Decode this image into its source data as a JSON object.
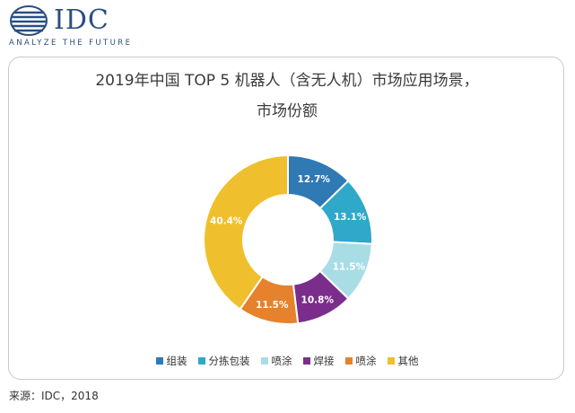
{
  "logo": {
    "wordmark": "IDC",
    "tagline": "ANALYZE THE FUTURE"
  },
  "colors": {
    "brand": "#2a4f82",
    "series": [
      "#2f79b4",
      "#2fa8c9",
      "#a8dde6",
      "#7b2d8c",
      "#e6812c",
      "#f0bf2d"
    ]
  },
  "chart_data": {
    "type": "pie",
    "subtype": "donut",
    "title_line1": "2019年中国 TOP 5 机器人（含无人机）市场应用场景，",
    "title_line2": "市场份额",
    "categories": [
      "组装",
      "分拣包装",
      "喷涂",
      "焊接",
      "喷涂",
      "其他"
    ],
    "labels": [
      "12.7%",
      "13.1%",
      "11.5%",
      "10.8%",
      "11.5%",
      "40.4%"
    ],
    "values": [
      12.7,
      13.1,
      11.5,
      10.8,
      11.5,
      40.4
    ],
    "unit": "%",
    "legend_position": "bottom"
  },
  "source": "来源：IDC，2018"
}
